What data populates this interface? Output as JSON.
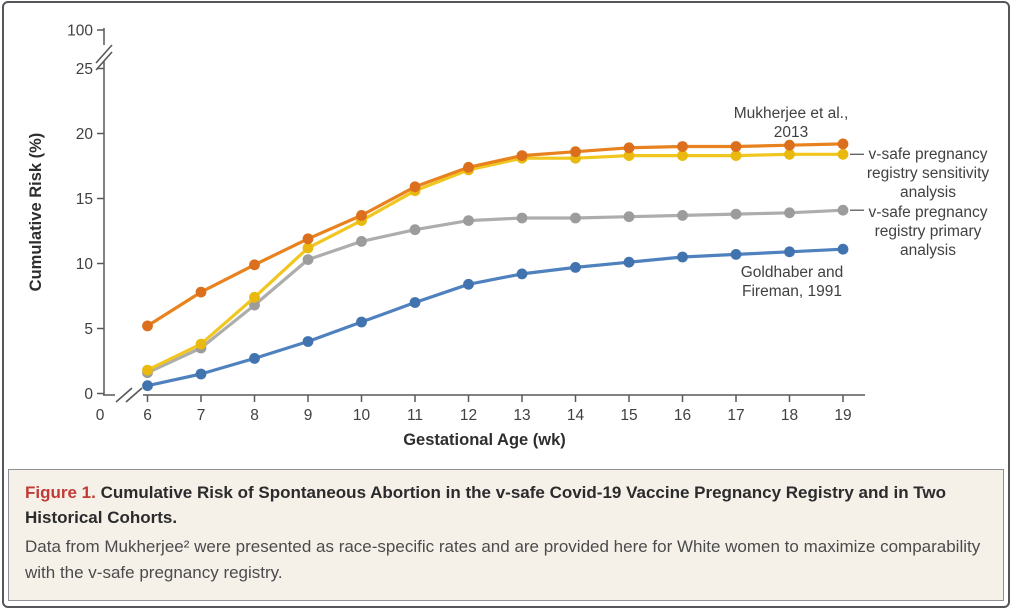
{
  "figure": {
    "caption": {
      "label": "Figure 1.",
      "title": "Cumulative Risk of Spontaneous Abortion in the v-safe Covid-19 Vaccine Pregnancy Registry and in Two Historical Cohorts.",
      "body": "Data from Mukherjee² were presented as race-specific rates and are provided here for White women to maximize comparability with the v-safe pregnancy registry.",
      "label_color": "#C23B36",
      "background_color": "#F6F1E8",
      "border_color": "#8E9093"
    },
    "frame_border_color": "#54565A"
  },
  "chart_data": {
    "type": "line",
    "title": "Figure 1. Cumulative Risk of Spontaneous Abortion in the v-safe Covid-19 Vaccine Pregnancy Registry and in Two Historical Cohorts.",
    "xlabel": "Gestational Age (wk)",
    "ylabel": "Cumulative Risk (%)",
    "grid": false,
    "legend_position": "inline-annotations",
    "x": [
      6,
      7,
      8,
      9,
      10,
      11,
      12,
      13,
      14,
      15,
      16,
      17,
      18,
      19
    ],
    "x_axis": {
      "ticks": [
        0,
        6,
        7,
        8,
        9,
        10,
        11,
        12,
        13,
        14,
        15,
        16,
        17,
        18,
        19
      ],
      "break_between": [
        0,
        6
      ]
    },
    "y_axis": {
      "ticks": [
        0,
        5,
        10,
        15,
        20,
        25,
        100
      ],
      "break_between": [
        25,
        100
      ],
      "ylim_shown": [
        0,
        26
      ]
    },
    "axis_color": "#58595B",
    "text_color": "#414042",
    "series": [
      {
        "id": "mukherjee-2013",
        "name": "Mukherjee et al., 2013",
        "label_lines": [
          "Mukherjee et al.,",
          "2013"
        ],
        "color": "#E8821E",
        "marker_color": "#DB6F1D",
        "values": [
          5.2,
          7.8,
          9.9,
          11.9,
          13.7,
          15.9,
          17.4,
          18.3,
          18.6,
          18.9,
          19.0,
          19.0,
          19.1,
          19.2
        ]
      },
      {
        "id": "vsafe-sensitivity",
        "name": "v-safe pregnancy registry sensitivity analysis",
        "label_lines": [
          "v-safe pregnancy",
          "registry sensitivity",
          "analysis"
        ],
        "color": "#F0C61F",
        "marker_color": "#E9B90F",
        "values": [
          1.8,
          3.8,
          7.4,
          11.2,
          13.3,
          15.6,
          17.2,
          18.1,
          18.1,
          18.3,
          18.3,
          18.3,
          18.4,
          18.4
        ]
      },
      {
        "id": "vsafe-primary",
        "name": "v-safe pregnancy registry primary analysis",
        "label_lines": [
          "v-safe pregnancy",
          "registry primary",
          "analysis"
        ],
        "color": "#ADADAD",
        "marker_color": "#9C9C9C",
        "values": [
          1.6,
          3.5,
          6.8,
          10.3,
          11.7,
          12.6,
          13.3,
          13.5,
          13.5,
          13.6,
          13.7,
          13.8,
          13.9,
          14.1
        ]
      },
      {
        "id": "goldhaber-fireman-1991",
        "name": "Goldhaber and Fireman, 1991",
        "label_lines": [
          "Goldhaber and",
          "Fireman, 1991"
        ],
        "color": "#4E81BE",
        "marker_color": "#4173AF",
        "values": [
          0.6,
          1.5,
          2.7,
          4.0,
          5.5,
          7.0,
          8.4,
          9.2,
          9.7,
          10.1,
          10.5,
          10.7,
          10.9,
          11.1
        ]
      }
    ]
  }
}
